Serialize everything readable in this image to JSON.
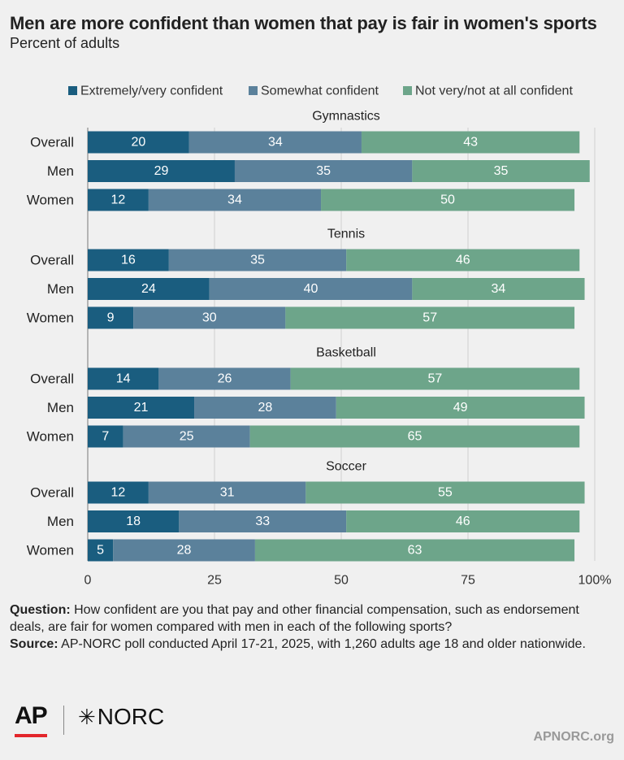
{
  "title": "Men are more confident than women that pay is fair in women's sports",
  "subtitle": "Percent of adults",
  "colors": {
    "extremely": "#1a5d7f",
    "somewhat": "#5b819b",
    "not": "#6da58a"
  },
  "chart_data": {
    "type": "bar",
    "orientation": "horizontal",
    "stacked": true,
    "legend_position": "top",
    "xlim": [
      0,
      100
    ],
    "x_ticks": [
      "0",
      "25",
      "50",
      "75",
      "100%"
    ],
    "series": [
      {
        "name": "Extremely/very confident"
      },
      {
        "name": "Somewhat confident"
      },
      {
        "name": "Not very/not at all confident"
      }
    ],
    "groups": [
      {
        "name": "Gymnastics",
        "rows": [
          {
            "label": "Overall",
            "values": [
              20,
              34,
              43
            ]
          },
          {
            "label": "Men",
            "values": [
              29,
              35,
              35
            ]
          },
          {
            "label": "Women",
            "values": [
              12,
              34,
              50
            ]
          }
        ]
      },
      {
        "name": "Tennis",
        "rows": [
          {
            "label": "Overall",
            "values": [
              16,
              35,
              46
            ]
          },
          {
            "label": "Men",
            "values": [
              24,
              40,
              34
            ]
          },
          {
            "label": "Women",
            "values": [
              9,
              30,
              57
            ]
          }
        ]
      },
      {
        "name": "Basketball",
        "rows": [
          {
            "label": "Overall",
            "values": [
              14,
              26,
              57
            ]
          },
          {
            "label": "Men",
            "values": [
              21,
              28,
              49
            ]
          },
          {
            "label": "Women",
            "values": [
              7,
              25,
              65
            ]
          }
        ]
      },
      {
        "name": "Soccer",
        "rows": [
          {
            "label": "Overall",
            "values": [
              12,
              31,
              55
            ]
          },
          {
            "label": "Men",
            "values": [
              18,
              33,
              46
            ]
          },
          {
            "label": "Women",
            "values": [
              5,
              28,
              63
            ]
          }
        ]
      }
    ]
  },
  "footer": {
    "question_label": "Question:",
    "question_text": "How confident are you that pay and other financial compensation, such as endorsement deals, are fair for women compared with men in each of the following sports?",
    "source_label": "Source:",
    "source_text": "AP-NORC poll conducted April 17-21, 2025, with 1,260 adults age 18 and older nationwide."
  },
  "logos": {
    "ap": "AP",
    "norc": "NORC",
    "norc_star": "✳"
  },
  "site": "APNORC.org"
}
